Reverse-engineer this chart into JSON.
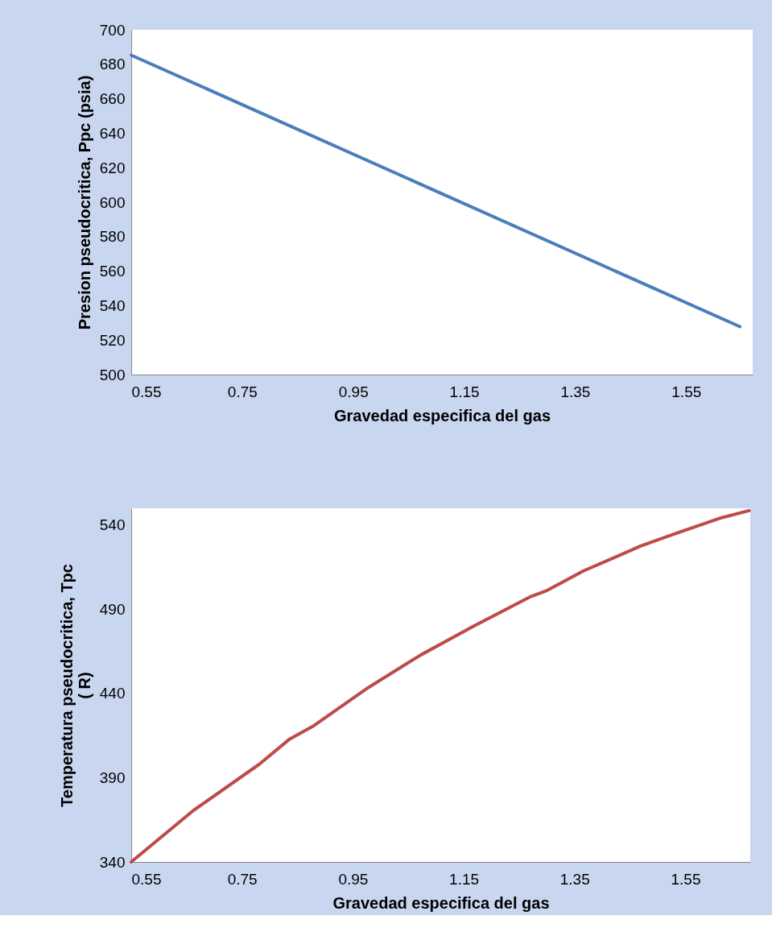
{
  "chart_data": [
    {
      "type": "line",
      "xlabel": "Gravedad especifica del gas",
      "ylabel": "Presion pseudocritica, Ppc (psia)",
      "xlim": [
        0.55,
        1.67
      ],
      "xticks": [
        0.55,
        0.75,
        0.95,
        1.15,
        1.35,
        1.55
      ],
      "ylim": [
        500,
        700
      ],
      "yticks": [
        500,
        520,
        540,
        560,
        580,
        600,
        620,
        640,
        660,
        680,
        700
      ],
      "grid": false,
      "marker": "none",
      "line_style": "solid",
      "x": [
        0.55,
        1.647
      ],
      "series": [
        {
          "color": "#4a7ebb",
          "values": [
            685.3,
            527.8
          ]
        }
      ]
    },
    {
      "type": "line",
      "xlabel": "Gravedad especifica del gas",
      "ylabel": "Temperatura pseudocritica, Tpc\n( R)",
      "xlim": [
        0.55,
        1.667
      ],
      "xticks": [
        0.55,
        0.75,
        0.95,
        1.15,
        1.35,
        1.55
      ],
      "ylim": [
        340,
        550
      ],
      "yticks": [
        340,
        390,
        440,
        490,
        540
      ],
      "grid": false,
      "marker": "none",
      "line_style": "solid",
      "x": [
        0.55,
        0.662,
        0.781,
        0.836,
        0.88,
        0.923,
        0.978,
        1.073,
        1.168,
        1.271,
        1.299,
        1.366,
        1.421,
        1.469,
        1.532,
        1.611,
        1.665
      ],
      "series": [
        {
          "color": "#be4b48",
          "values": [
            340,
            370.5,
            398,
            413,
            421,
            431,
            443.6,
            463,
            480,
            497.6,
            501,
            512.8,
            520.6,
            527.6,
            535,
            544,
            548.6
          ]
        }
      ]
    }
  ]
}
